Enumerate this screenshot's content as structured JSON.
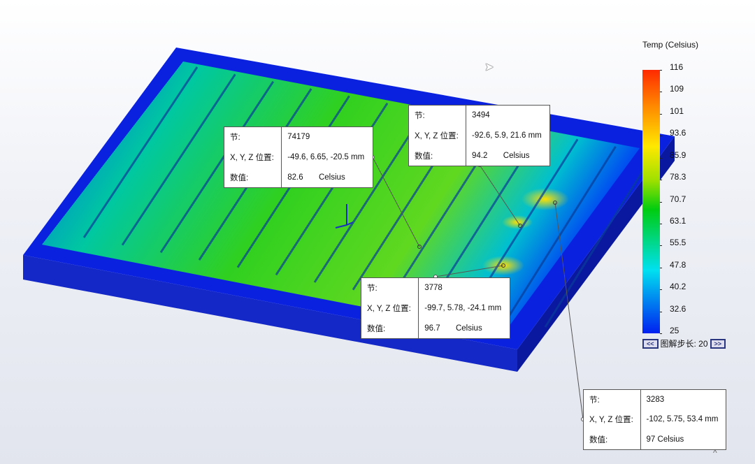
{
  "legend": {
    "title": "Temp (Celsius)",
    "ticks": [
      "116",
      "109",
      "101",
      "93.6",
      "85.9",
      "78.3",
      "70.7",
      "63.1",
      "55.5",
      "47.8",
      "40.2",
      "32.6",
      "25"
    ],
    "range": [
      25,
      116
    ],
    "step_label": "图解步长: 20",
    "prev_label": "<<",
    "next_label": ">>"
  },
  "colors": {
    "hot": "#ff2a00",
    "mid": "#00cc10",
    "cold": "#0020f0",
    "frame": "#0a1fd8"
  },
  "probes": [
    {
      "node_label": "节:",
      "node": "74179",
      "pos_label": "X, Y, Z 位置:",
      "pos": "-49.6, 6.65, -20.5 mm",
      "val_label": "数值:",
      "val": "82.6       Celsius"
    },
    {
      "node_label": "节:",
      "node": "3494",
      "pos_label": "X, Y, Z 位置:",
      "pos": "-92.6, 5.9, 21.6 mm",
      "val_label": "数值:",
      "val": "94.2       Celsius"
    },
    {
      "node_label": "节:",
      "node": "3778",
      "pos_label": "X, Y, Z 位置:",
      "pos": "-99.7, 5.78, -24.1 mm",
      "val_label": "数值:",
      "val": "96.7       Celsius"
    },
    {
      "node_label": "节:",
      "node": "3283",
      "pos_label": "X, Y, Z 位置:",
      "pos": "-102, 5.75, 53.4 mm",
      "val_label": "数值:",
      "val": "97 Celsius"
    }
  ],
  "icons": {
    "cursor": "mouse-pointer-icon",
    "collapse": "chevron-up-icon",
    "triad": "axis-triad-icon"
  }
}
